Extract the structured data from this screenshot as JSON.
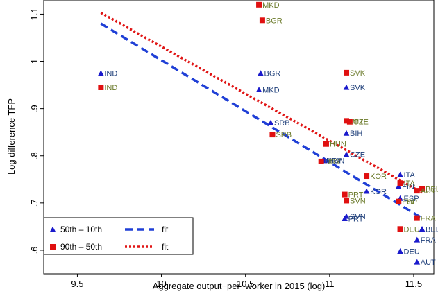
{
  "chart_data": {
    "type": "scatter",
    "xlabel": "Aggregate output−per−worker in 2015 (log)",
    "ylabel": "Log difference TFP",
    "xlim": [
      9.3,
      11.62
    ],
    "ylim": [
      0.55,
      1.13
    ],
    "x_ticks": [
      9.5,
      10,
      10.5,
      11,
      11.5
    ],
    "x_tick_labels": [
      "9.5",
      "10",
      "10.5",
      "11",
      "11.5"
    ],
    "y_ticks": [
      0.6,
      0.7,
      0.8,
      0.9,
      1.0,
      1.1
    ],
    "y_tick_labels": [
      ".6",
      ".7",
      ".8",
      ".9",
      "1",
      "1.1"
    ],
    "grid": false,
    "legend_position": "bottom-left",
    "colors": {
      "blue_marker": "#1a1acc",
      "blue_label": "#1f3f7a",
      "red_marker": "#e01010",
      "red_label": "#6b7a2a",
      "blue_fit": "#1f3fd6",
      "red_fit": "#e01515"
    },
    "series": [
      {
        "name": "50th – 10th",
        "marker": "triangle",
        "points": [
          {
            "x": 9.64,
            "y": 0.975,
            "label": "IND"
          },
          {
            "x": 10.59,
            "y": 0.975,
            "label": "BGR"
          },
          {
            "x": 10.58,
            "y": 0.94,
            "label": "MKD"
          },
          {
            "x": 11.1,
            "y": 0.945,
            "label": "SVK"
          },
          {
            "x": 10.65,
            "y": 0.87,
            "label": "SRB"
          },
          {
            "x": 11.1,
            "y": 0.848,
            "label": "BIH"
          },
          {
            "x": 11.1,
            "y": 0.803,
            "label": "CZE"
          },
          {
            "x": 10.97,
            "y": 0.79,
            "label": "HUN"
          },
          {
            "x": 10.96,
            "y": 0.79,
            "label": "URY"
          },
          {
            "x": 11.42,
            "y": 0.76,
            "label": "ITA"
          },
          {
            "x": 11.22,
            "y": 0.725,
            "label": "KOR"
          },
          {
            "x": 11.41,
            "y": 0.735,
            "label": "FIN"
          },
          {
            "x": 11.42,
            "y": 0.71,
            "label": "ESP"
          },
          {
            "x": 11.1,
            "y": 0.672,
            "label": "SVN"
          },
          {
            "x": 11.09,
            "y": 0.667,
            "label": "PRT"
          },
          {
            "x": 11.55,
            "y": 0.645,
            "label": "BEL"
          },
          {
            "x": 11.52,
            "y": 0.622,
            "label": "FRA"
          },
          {
            "x": 11.42,
            "y": 0.598,
            "label": "DEU"
          },
          {
            "x": 11.52,
            "y": 0.575,
            "label": "AUT"
          }
        ]
      },
      {
        "name": "90th – 50th",
        "marker": "square",
        "points": [
          {
            "x": 9.64,
            "y": 0.945,
            "label": "IND"
          },
          {
            "x": 10.58,
            "y": 1.12,
            "label": "MKD"
          },
          {
            "x": 10.6,
            "y": 1.087,
            "label": "BGR"
          },
          {
            "x": 11.1,
            "y": 0.976,
            "label": "SVK"
          },
          {
            "x": 11.1,
            "y": 0.874,
            "label": "BIH"
          },
          {
            "x": 11.12,
            "y": 0.872,
            "label": "CZE"
          },
          {
            "x": 10.66,
            "y": 0.845,
            "label": "SRB"
          },
          {
            "x": 10.98,
            "y": 0.825,
            "label": "HUN"
          },
          {
            "x": 10.95,
            "y": 0.788,
            "label": "URY"
          },
          {
            "x": 11.22,
            "y": 0.757,
            "label": "KOR"
          },
          {
            "x": 11.42,
            "y": 0.742,
            "label": "ITA"
          },
          {
            "x": 11.55,
            "y": 0.73,
            "label": "BEL"
          },
          {
            "x": 11.52,
            "y": 0.726,
            "label": "AUT"
          },
          {
            "x": 11.41,
            "y": 0.703,
            "label": "ESP"
          },
          {
            "x": 11.41,
            "y": 0.703,
            "label": "FIN"
          },
          {
            "x": 11.09,
            "y": 0.718,
            "label": "PRT"
          },
          {
            "x": 11.1,
            "y": 0.705,
            "label": "SVN"
          },
          {
            "x": 11.52,
            "y": 0.668,
            "label": "FRA"
          },
          {
            "x": 11.42,
            "y": 0.645,
            "label": "DEU"
          }
        ]
      }
    ],
    "fit_lines": [
      {
        "name": "fit",
        "of": "50th – 10th",
        "style": "dashed",
        "x": [
          9.64,
          11.55
        ],
        "y": [
          1.08,
          0.668
        ]
      },
      {
        "name": "fit",
        "of": "90th – 50th",
        "style": "dotted",
        "x": [
          9.64,
          11.55
        ],
        "y": [
          1.103,
          0.722
        ]
      }
    ],
    "legend": [
      {
        "label": "50th – 10th",
        "kind": "marker",
        "marker": "triangle"
      },
      {
        "label": "fit",
        "kind": "line",
        "style": "dashed"
      },
      {
        "label": "90th – 50th",
        "kind": "marker",
        "marker": "square"
      },
      {
        "label": "fit",
        "kind": "line",
        "style": "dotted"
      }
    ]
  }
}
